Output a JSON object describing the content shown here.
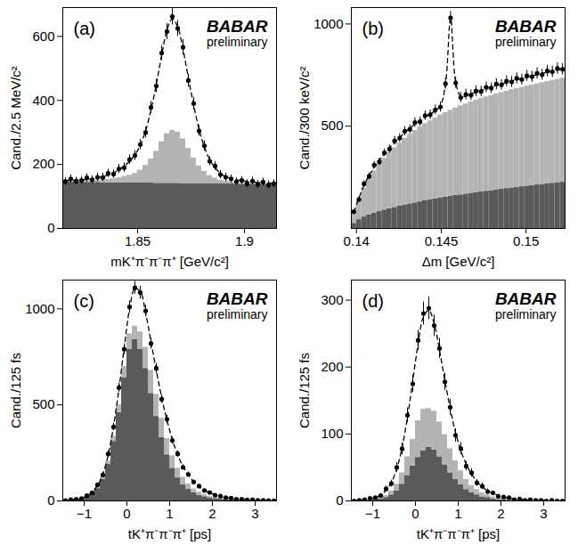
{
  "chart_data": [
    {
      "type": "histogram",
      "title": "(a)",
      "annotations": [
        "BABAR",
        "preliminary"
      ],
      "x_label": "mK⁺π⁻π⁻π⁺ [GeV/c²]",
      "y_label": "Cand./2.5 MeV/c²",
      "xlim": [
        1.815,
        1.915
      ],
      "xticks": [
        1.85,
        1.9
      ],
      "ylim": [
        0,
        690
      ],
      "yticks": [
        0,
        200,
        400,
        600
      ],
      "stacked": true,
      "bins": [
        1.815,
        1.8175,
        1.82,
        1.8225,
        1.825,
        1.8275,
        1.83,
        1.8325,
        1.835,
        1.8375,
        1.84,
        1.8425,
        1.845,
        1.8475,
        1.85,
        1.8525,
        1.855,
        1.8575,
        1.86,
        1.8625,
        1.865,
        1.8675,
        1.87,
        1.8725,
        1.875,
        1.8775,
        1.88,
        1.8825,
        1.885,
        1.8875,
        1.89,
        1.8925,
        1.895,
        1.8975,
        1.9,
        1.9025,
        1.905,
        1.9075,
        1.91,
        1.9125,
        1.915
      ],
      "series": [
        {
          "type": "histogram",
          "color": "#5a5a5a",
          "values": [
            145,
            145,
            145,
            144,
            144,
            144,
            144,
            143,
            143,
            143,
            143,
            143,
            142,
            142,
            142,
            142,
            142,
            141,
            141,
            141,
            141,
            141,
            140,
            140,
            140,
            140,
            140,
            139,
            139,
            139,
            139,
            139,
            138,
            138,
            138,
            138,
            138,
            137,
            137,
            137
          ]
        },
        {
          "type": "histogram",
          "color": "#b4b4b4",
          "values": [
            2,
            2,
            3,
            3,
            4,
            5,
            6,
            8,
            10,
            12,
            15,
            19,
            24,
            30,
            40,
            55,
            75,
            100,
            130,
            155,
            165,
            160,
            140,
            110,
            80,
            55,
            38,
            26,
            18,
            12,
            9,
            7,
            5,
            4,
            3,
            3,
            2,
            2,
            2,
            2
          ]
        },
        {
          "type": "line",
          "line_style": "dashed",
          "color": "#000000",
          "values": [
            150,
            150,
            151,
            152,
            153,
            155,
            158,
            162,
            167,
            174,
            183,
            195,
            210,
            230,
            260,
            305,
            370,
            450,
            540,
            620,
            655,
            630,
            560,
            470,
            385,
            310,
            255,
            215,
            190,
            172,
            162,
            156,
            152,
            149,
            147,
            145,
            144,
            143,
            142,
            141
          ]
        },
        {
          "type": "scatter",
          "marker": "circle",
          "color": "#000000",
          "values": [
            147,
            155,
            148,
            150,
            158,
            152,
            160,
            159,
            172,
            170,
            186,
            190,
            215,
            228,
            262,
            300,
            378,
            445,
            548,
            615,
            662,
            625,
            566,
            462,
            390,
            305,
            258,
            210,
            195,
            168,
            160,
            155,
            146,
            150,
            140,
            148,
            138,
            145,
            136,
            140
          ],
          "errors": [
            12,
            12,
            12,
            12,
            13,
            12,
            13,
            13,
            13,
            13,
            14,
            14,
            15,
            15,
            16,
            17,
            19,
            21,
            23,
            25,
            26,
            25,
            24,
            21,
            20,
            17,
            16,
            14,
            14,
            13,
            13,
            12,
            12,
            12,
            12,
            12,
            12,
            12,
            12,
            12
          ]
        }
      ]
    },
    {
      "type": "histogram",
      "title": "(b)",
      "annotations": [
        "BABAR",
        "preliminary"
      ],
      "x_label": "Δm [GeV/c²]",
      "y_label": "Cand./300 keV/c²",
      "xlim": [
        0.1397,
        0.1523
      ],
      "xticks": [
        0.14,
        0.145,
        0.15
      ],
      "ylim": [
        0,
        1080
      ],
      "yticks": [
        500,
        1000
      ],
      "stacked": true,
      "bins": [
        0.1397,
        0.14,
        0.1403,
        0.1406,
        0.1409,
        0.1412,
        0.1415,
        0.1418,
        0.1421,
        0.1424,
        0.1427,
        0.143,
        0.1433,
        0.1436,
        0.1439,
        0.1442,
        0.1445,
        0.1448,
        0.1451,
        0.1454,
        0.1457,
        0.146,
        0.1463,
        0.1466,
        0.1469,
        0.1472,
        0.1475,
        0.1478,
        0.1481,
        0.1484,
        0.1487,
        0.149,
        0.1493,
        0.1496,
        0.1499,
        0.1502,
        0.1505,
        0.1508,
        0.1511,
        0.1514,
        0.1517,
        0.152,
        0.1523
      ],
      "series": [
        {
          "type": "histogram",
          "color": "#5a5a5a",
          "values": [
            25,
            43,
            56,
            66,
            75,
            83,
            90,
            97,
            103,
            109,
            115,
            120,
            125,
            130,
            135,
            140,
            144,
            148,
            153,
            157,
            161,
            164,
            168,
            172,
            175,
            179,
            182,
            185,
            189,
            192,
            195,
            198,
            201,
            204,
            207,
            210,
            213,
            215,
            218,
            221,
            223,
            226
          ]
        },
        {
          "type": "histogram",
          "color": "#b4b4b4",
          "values": [
            50,
            98,
            141,
            178,
            207,
            232,
            253,
            274,
            292,
            309,
            325,
            341,
            354,
            366,
            377,
            386,
            397,
            407,
            414,
            421,
            428,
            436,
            441,
            447,
            452,
            456,
            461,
            465,
            469,
            473,
            476,
            480,
            483,
            486,
            489,
            491,
            494,
            498,
            500,
            503,
            506,
            509
          ]
        },
        {
          "type": "line",
          "line_style": "dashed",
          "color": "#000000",
          "values": [
            80,
            150,
            210,
            260,
            300,
            335,
            365,
            395,
            420,
            445,
            468,
            490,
            510,
            528,
            545,
            560,
            575,
            600,
            703,
            1030,
            717,
            646,
            648,
            658,
            667,
            676,
            684,
            692,
            700,
            707,
            714,
            721,
            728,
            734,
            740,
            746,
            752,
            758,
            764,
            770,
            776,
            782
          ]
        },
        {
          "type": "scatter",
          "marker": "circle",
          "color": "#000000",
          "values": [
            82,
            142,
            218,
            255,
            310,
            326,
            370,
            388,
            428,
            442,
            475,
            485,
            518,
            522,
            552,
            556,
            580,
            594,
            708,
            1030,
            712,
            640,
            655,
            652,
            672,
            670,
            690,
            686,
            706,
            702,
            720,
            716,
            734,
            728,
            746,
            742,
            758,
            752,
            770,
            766,
            782,
            778
          ],
          "errors": [
            9,
            12,
            15,
            16,
            18,
            18,
            19,
            20,
            21,
            21,
            22,
            22,
            23,
            23,
            23,
            24,
            24,
            24,
            27,
            32,
            27,
            25,
            26,
            26,
            26,
            26,
            26,
            26,
            27,
            26,
            27,
            27,
            27,
            27,
            27,
            27,
            28,
            27,
            28,
            28,
            28,
            28
          ]
        }
      ]
    },
    {
      "type": "histogram",
      "title": "(c)",
      "annotations": [
        "BABAR",
        "preliminary"
      ],
      "x_label": "tK⁺π⁻π⁻π⁺ [ps]",
      "y_label": "Cand./125 fs",
      "xlim": [
        -1.5,
        3.5
      ],
      "xticks": [
        {
          "value": -1,
          "label": "−1"
        },
        0,
        1,
        2,
        3
      ],
      "ylim": [
        0,
        1150
      ],
      "yticks": [
        0,
        500,
        1000
      ],
      "stacked": true,
      "bins": [
        -1.5,
        -1.375,
        -1.25,
        -1.125,
        -1,
        -0.875,
        -0.75,
        -0.625,
        -0.5,
        -0.375,
        -0.25,
        -0.125,
        0,
        0.125,
        0.25,
        0.375,
        0.5,
        0.625,
        0.75,
        0.875,
        1,
        1.125,
        1.25,
        1.375,
        1.5,
        1.625,
        1.75,
        1.875,
        2,
        2.125,
        2.25,
        2.375,
        2.5,
        2.625,
        2.75,
        2.875,
        3,
        3.125,
        3.25,
        3.375,
        3.5
      ],
      "series": [
        {
          "type": "histogram",
          "color": "#5a5a5a",
          "values": [
            2,
            4,
            6,
            11,
            20,
            36,
            64,
            112,
            190,
            310,
            460,
            640,
            790,
            840,
            790,
            690,
            560,
            440,
            330,
            240,
            170,
            120,
            85,
            60,
            42,
            30,
            22,
            16,
            12,
            9,
            7,
            5,
            4,
            3,
            2,
            2,
            1,
            1,
            1,
            1
          ]
        },
        {
          "type": "histogram",
          "color": "#b4b4b4",
          "values": [
            0,
            0,
            1,
            1,
            2,
            4,
            6,
            10,
            16,
            26,
            40,
            60,
            80,
            70,
            90,
            110,
            120,
            115,
            100,
            85,
            65,
            50,
            38,
            28,
            20,
            15,
            11,
            8,
            6,
            5,
            4,
            3,
            2,
            2,
            1,
            1,
            1,
            1,
            0,
            0
          ]
        },
        {
          "type": "line",
          "line_style": "dashed",
          "color": "#000000",
          "values": [
            3,
            5,
            8,
            14,
            25,
            45,
            80,
            140,
            240,
            390,
            580,
            800,
            1000,
            1105,
            1090,
            980,
            830,
            680,
            540,
            420,
            320,
            240,
            180,
            135,
            100,
            75,
            56,
            42,
            32,
            24,
            18,
            14,
            10,
            8,
            6,
            5,
            4,
            3,
            2,
            2
          ]
        },
        {
          "type": "scatter",
          "marker": "circle",
          "color": "#000000",
          "values": [
            2,
            6,
            9,
            12,
            27,
            42,
            84,
            135,
            245,
            385,
            590,
            790,
            1010,
            1110,
            1085,
            990,
            820,
            690,
            530,
            425,
            315,
            245,
            175,
            138,
            98,
            77,
            54,
            44,
            30,
            25,
            17,
            15,
            9,
            9,
            5,
            6,
            3,
            3,
            2,
            1
          ],
          "errors": [
            1,
            2,
            3,
            3,
            5,
            6,
            9,
            12,
            16,
            20,
            24,
            28,
            32,
            33,
            33,
            31,
            29,
            26,
            23,
            21,
            18,
            16,
            13,
            12,
            10,
            9,
            7,
            7,
            5,
            5,
            4,
            4,
            3,
            3,
            2,
            2,
            2,
            2,
            1,
            1
          ]
        }
      ]
    },
    {
      "type": "histogram",
      "title": "(d)",
      "annotations": [
        "BABAR",
        "preliminary"
      ],
      "x_label": "tK⁺π⁻π⁻π⁺ [ps]",
      "y_label": "Cand./125 fs",
      "xlim": [
        -1.5,
        3.5
      ],
      "xticks": [
        {
          "value": -1,
          "label": "−1"
        },
        0,
        1,
        2,
        3
      ],
      "ylim": [
        0,
        330
      ],
      "yticks": [
        0,
        100,
        200,
        300
      ],
      "stacked": true,
      "bins": [
        -1.5,
        -1.375,
        -1.25,
        -1.125,
        -1,
        -0.875,
        -0.75,
        -0.625,
        -0.5,
        -0.375,
        -0.25,
        -0.125,
        0,
        0.125,
        0.25,
        0.375,
        0.5,
        0.625,
        0.75,
        0.875,
        1,
        1.125,
        1.25,
        1.375,
        1.5,
        1.625,
        1.75,
        1.875,
        2,
        2.125,
        2.25,
        2.375,
        2.5,
        2.625,
        2.75,
        2.875,
        3,
        3.125,
        3.25,
        3.375,
        3.5
      ],
      "series": [
        {
          "type": "histogram",
          "color": "#5a5a5a",
          "values": [
            0,
            0,
            1,
            1,
            2,
            3,
            5,
            9,
            15,
            25,
            38,
            52,
            65,
            75,
            80,
            76,
            66,
            54,
            42,
            32,
            24,
            17,
            12,
            9,
            6,
            5,
            3,
            2,
            2,
            1,
            1,
            1,
            0,
            0,
            0,
            0,
            0,
            0,
            0,
            0
          ]
        },
        {
          "type": "histogram",
          "color": "#b4b4b4",
          "values": [
            0,
            0,
            0,
            1,
            1,
            2,
            3,
            6,
            10,
            17,
            28,
            40,
            55,
            62,
            58,
            58,
            52,
            45,
            36,
            28,
            21,
            15,
            11,
            8,
            6,
            4,
            3,
            2,
            2,
            1,
            1,
            1,
            1,
            0,
            0,
            0,
            0,
            0,
            0,
            0
          ]
        },
        {
          "type": "line",
          "line_style": "dashed",
          "color": "#000000",
          "values": [
            1,
            1,
            2,
            3,
            5,
            9,
            16,
            28,
            48,
            80,
            125,
            180,
            235,
            275,
            285,
            265,
            225,
            180,
            138,
            102,
            75,
            55,
            40,
            29,
            21,
            15,
            11,
            8,
            6,
            4,
            3,
            2,
            2,
            1,
            1,
            1,
            1,
            0,
            0,
            0
          ]
        },
        {
          "type": "scatter",
          "marker": "circle",
          "color": "#000000",
          "values": [
            0,
            1,
            2,
            4,
            5,
            8,
            18,
            26,
            50,
            78,
            128,
            175,
            240,
            280,
            288,
            262,
            228,
            178,
            140,
            98,
            78,
            52,
            42,
            27,
            22,
            14,
            12,
            7,
            6,
            5,
            2,
            3,
            1,
            2,
            1,
            1,
            0,
            1,
            0,
            0
          ],
          "errors": [
            1,
            1,
            1,
            2,
            2,
            3,
            4,
            5,
            7,
            9,
            11,
            13,
            15,
            17,
            17,
            16,
            15,
            13,
            12,
            10,
            9,
            7,
            6,
            5,
            5,
            4,
            3,
            3,
            2,
            2,
            1,
            2,
            1,
            1,
            1,
            1,
            1,
            1,
            1,
            1
          ]
        }
      ]
    }
  ]
}
